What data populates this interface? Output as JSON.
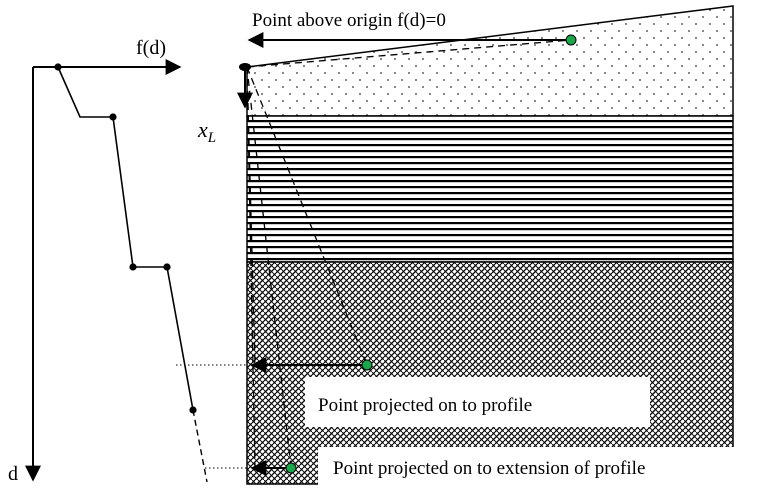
{
  "labels": {
    "f_axis": "f(d)",
    "d_axis": "d",
    "x_l_main": "x",
    "x_l_sub": "L",
    "point_above_origin": "Point above origin f(d)=0",
    "point_projected": "Point projected on to profile",
    "point_projected_extension": "Point projected on to extension of profile"
  },
  "colors": {
    "line": "#000000",
    "point_fill": "#1aa64a",
    "point_stroke": "#000000",
    "background": "#ffffff"
  },
  "layers": [
    {
      "name": "top-layer",
      "pattern": "dots"
    },
    {
      "name": "middle-layer",
      "pattern": "horizontal-lines"
    },
    {
      "name": "bottom-layer",
      "pattern": "weave-hatch"
    }
  ]
}
